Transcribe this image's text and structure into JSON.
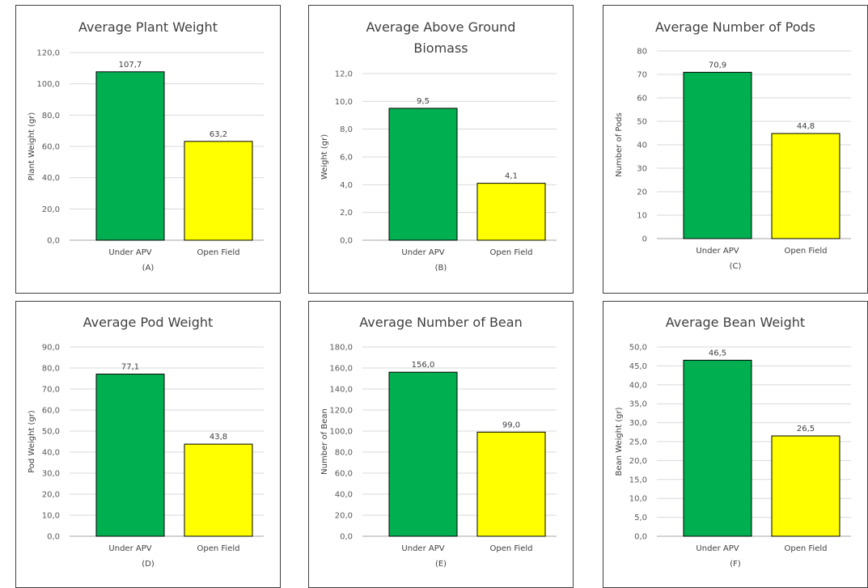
{
  "colors": {
    "under_apv": "#00b050",
    "open_field": "#ffff00",
    "bar_edge": "#000000"
  },
  "chart_data": [
    {
      "type": "bar",
      "title": "Average Plant Weight",
      "ylabel": "Plant Weight (gr)",
      "panel_label": "(A)",
      "categories": [
        "Under APV",
        "Open Field"
      ],
      "values": [
        107.7,
        63.2
      ],
      "value_labels": [
        "107,7",
        "63,2"
      ],
      "ylim": [
        0,
        120
      ],
      "yticks": [
        "0,0",
        "20,0",
        "40,0",
        "60,0",
        "80,0",
        "100,0",
        "120,0"
      ],
      "grid": true
    },
    {
      "type": "bar",
      "title": "Average Above Ground Biomass",
      "ylabel": "Weight (gr)",
      "panel_label": "(B)",
      "categories": [
        "Under APV",
        "Open Field"
      ],
      "values": [
        9.5,
        4.1
      ],
      "value_labels": [
        "9,5",
        "4,1"
      ],
      "ylim": [
        0,
        12
      ],
      "yticks": [
        "0,0",
        "2,0",
        "4,0",
        "6,0",
        "8,0",
        "10,0",
        "12,0"
      ],
      "grid": true
    },
    {
      "type": "bar",
      "title": "Average Number of Pods",
      "ylabel": "Number of Pods",
      "panel_label": "(C)",
      "categories": [
        "Under APV",
        "Open Field"
      ],
      "values": [
        70.9,
        44.8
      ],
      "value_labels": [
        "70,9",
        "44,8"
      ],
      "ylim": [
        0,
        80
      ],
      "yticks": [
        "0",
        "10",
        "20",
        "30",
        "40",
        "50",
        "60",
        "70",
        "80"
      ],
      "grid": true
    },
    {
      "type": "bar",
      "title": "Average Pod Weight",
      "ylabel": "Pod Weight (gr)",
      "panel_label": "(D)",
      "categories": [
        "Under APV",
        "Open Field"
      ],
      "values": [
        77.1,
        43.8
      ],
      "value_labels": [
        "77,1",
        "43,8"
      ],
      "ylim": [
        0,
        90
      ],
      "yticks": [
        "0,0",
        "10,0",
        "20,0",
        "30,0",
        "40,0",
        "50,0",
        "60,0",
        "70,0",
        "80,0",
        "90,0"
      ],
      "grid": true
    },
    {
      "type": "bar",
      "title": "Average Number of Bean",
      "ylabel": "Number of Bean",
      "panel_label": "(E)",
      "categories": [
        "Under APV",
        "Open Field"
      ],
      "values": [
        156.0,
        99.0
      ],
      "value_labels": [
        "156,0",
        "99,0"
      ],
      "ylim": [
        0,
        180
      ],
      "yticks": [
        "0,0",
        "20,0",
        "40,0",
        "60,0",
        "80,0",
        "100,0",
        "120,0",
        "140,0",
        "160,0",
        "180,0"
      ],
      "grid": true
    },
    {
      "type": "bar",
      "title": "Average Bean Weight",
      "ylabel": "Bean Weight (gr)",
      "panel_label": "(F)",
      "categories": [
        "Under APV",
        "Open Field"
      ],
      "values": [
        46.5,
        26.5
      ],
      "value_labels": [
        "46,5",
        "26,5"
      ],
      "ylim": [
        0,
        50
      ],
      "yticks": [
        "0,0",
        "5,0",
        "10,0",
        "15,0",
        "20,0",
        "25,0",
        "30,0",
        "35,0",
        "40,0",
        "45,0",
        "50,0"
      ],
      "grid": true
    }
  ]
}
